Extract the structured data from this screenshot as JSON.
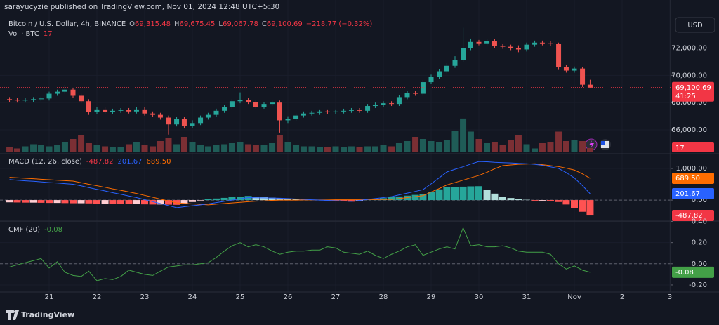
{
  "header": {
    "published": "sarayucyzie published on TradingView.com, Nov 01, 2024 12:48 UTC+5:30",
    "currency": "USD",
    "brand": "TradingView"
  },
  "chart_data": [
    {
      "type": "candlestick",
      "title": "Bitcoin / U.S. Dollar, 4h, BINANCE",
      "ohlc_legend": [
        {
          "key": "O",
          "text": "69,315.48"
        },
        {
          "key": "H",
          "text": "69,675.45"
        },
        {
          "key": "L",
          "text": "69,067.78"
        },
        {
          "key": "C",
          "text": "69,100.69"
        }
      ],
      "change": "−218.77 (−0.32%)",
      "last_label": "69,100.69",
      "countdown": "41:25",
      "up_color": "#26a69a",
      "down_color": "#ef5350",
      "xlim": [
        20,
        34
      ],
      "xticks": [
        21,
        22,
        23,
        24,
        25,
        26,
        27,
        28,
        29,
        30,
        31,
        {
          "value": 32,
          "label": "Nov"
        },
        {
          "value": 33,
          "label": "2"
        },
        {
          "value": 34,
          "label": "3"
        }
      ],
      "ylim": [
        64300,
        74500
      ],
      "yticks": [
        {
          "value": 72000,
          "label": "72,000.00"
        },
        {
          "value": 70000,
          "label": "70,000.00"
        },
        {
          "value": 68000,
          "label": "68,000.00"
        },
        {
          "value": 66000,
          "label": "66,000.00"
        }
      ],
      "x": [
        20.17,
        20.33,
        20.5,
        20.67,
        20.83,
        21,
        21.17,
        21.33,
        21.5,
        21.67,
        21.83,
        22,
        22.17,
        22.33,
        22.5,
        22.67,
        22.83,
        23,
        23.17,
        23.33,
        23.5,
        23.67,
        23.83,
        24,
        24.17,
        24.33,
        24.5,
        24.67,
        24.83,
        25,
        25.17,
        25.33,
        25.5,
        25.67,
        25.83,
        26,
        26.17,
        26.33,
        26.5,
        26.67,
        26.83,
        27,
        27.17,
        27.33,
        27.5,
        27.67,
        27.83,
        28,
        28.17,
        28.33,
        28.5,
        28.67,
        28.83,
        29,
        29.17,
        29.33,
        29.5,
        29.67,
        29.83,
        30,
        30.17,
        30.33,
        30.5,
        30.67,
        30.83,
        31,
        31.17,
        31.33,
        31.5,
        31.67,
        31.83,
        32,
        32.17,
        32.33
      ],
      "open": [
        68250,
        68200,
        68150,
        68200,
        68250,
        68300,
        68650,
        68800,
        68950,
        68500,
        68100,
        67300,
        67500,
        67300,
        67400,
        67450,
        67350,
        67500,
        67200,
        67100,
        66900,
        66400,
        66800,
        66300,
        66500,
        66900,
        67100,
        67400,
        67700,
        68100,
        68200,
        68050,
        67700,
        67900,
        68000,
        66700,
        66800,
        67050,
        67200,
        67250,
        67350,
        67300,
        67350,
        67400,
        67450,
        67400,
        67750,
        67850,
        67950,
        67900,
        68400,
        68700,
        68650,
        69500,
        69900,
        70300,
        70700,
        71100,
        72000,
        72450,
        72350,
        72500,
        72150,
        72100,
        72000,
        71900,
        72250,
        72400,
        72350,
        72300,
        70600,
        70350,
        70500,
        69315.48
      ],
      "high": [
        68400,
        68350,
        68350,
        68400,
        68450,
        68800,
        68950,
        69300,
        69100,
        68650,
        68250,
        67700,
        67650,
        67550,
        67600,
        67600,
        67650,
        67700,
        67350,
        67250,
        67050,
        66950,
        66950,
        66700,
        67050,
        67250,
        67550,
        67850,
        68250,
        68750,
        68350,
        68200,
        68050,
        68150,
        68150,
        67000,
        67200,
        67350,
        67400,
        67500,
        67500,
        67500,
        67550,
        67600,
        67600,
        67900,
        68000,
        68100,
        68100,
        68550,
        68850,
        68850,
        69650,
        70050,
        70450,
        70900,
        71400,
        73500,
        72700,
        72600,
        72650,
        72650,
        72300,
        72250,
        72200,
        72400,
        72550,
        72550,
        72500,
        72400,
        70750,
        70650,
        70600,
        69675.45
      ],
      "low": [
        68050,
        68000,
        68000,
        68050,
        68100,
        68150,
        68500,
        68650,
        68350,
        67950,
        67100,
        67150,
        67150,
        67150,
        67250,
        67200,
        67200,
        67050,
        66950,
        66750,
        65650,
        66250,
        66100,
        66150,
        66350,
        66750,
        66950,
        67250,
        67550,
        67950,
        67900,
        67550,
        67550,
        67750,
        65800,
        66500,
        66650,
        66900,
        67050,
        67100,
        67150,
        67150,
        67200,
        67250,
        67250,
        67250,
        67600,
        67700,
        67750,
        67750,
        68250,
        68500,
        68500,
        69350,
        69750,
        70150,
        70550,
        70950,
        71850,
        72200,
        72200,
        72000,
        71950,
        71850,
        71700,
        71750,
        72100,
        72200,
        72150,
        70400,
        70200,
        70200,
        69150,
        69067.78
      ],
      "close": [
        68200,
        68150,
        68200,
        68250,
        68300,
        68650,
        68800,
        68950,
        68500,
        68100,
        67300,
        67500,
        67300,
        67400,
        67450,
        67350,
        67500,
        67200,
        67100,
        66900,
        66400,
        66800,
        66300,
        66500,
        66900,
        67100,
        67400,
        67700,
        68100,
        68200,
        68050,
        67700,
        67900,
        68000,
        66700,
        66800,
        67050,
        67200,
        67250,
        67350,
        67300,
        67350,
        67400,
        67450,
        67400,
        67750,
        67850,
        67950,
        67900,
        68400,
        68700,
        68650,
        69500,
        69900,
        70300,
        70700,
        71100,
        72000,
        72450,
        72350,
        72500,
        72150,
        72100,
        72000,
        71900,
        72250,
        72400,
        72350,
        72300,
        70600,
        70350,
        70500,
        69315,
        69100.69
      ]
    },
    {
      "type": "bar",
      "title": "Vol · BTC",
      "up_color": "#1f5c57",
      "down_color": "#7b2f34",
      "ylim": [
        0,
        200
      ],
      "values": [
        20,
        15,
        25,
        35,
        30,
        25,
        30,
        45,
        60,
        80,
        40,
        30,
        25,
        20,
        20,
        35,
        45,
        30,
        25,
        50,
        65,
        35,
        70,
        45,
        30,
        25,
        30,
        35,
        40,
        45,
        35,
        30,
        30,
        40,
        80,
        45,
        30,
        25,
        25,
        20,
        20,
        25,
        20,
        25,
        20,
        25,
        25,
        30,
        25,
        40,
        50,
        70,
        60,
        50,
        45,
        55,
        100,
        157,
        95,
        60,
        40,
        45,
        30,
        55,
        80,
        35,
        15,
        40,
        45,
        95,
        50,
        55,
        50,
        17
      ]
    },
    {
      "type": "macd",
      "title": "MACD (12, 26, close)",
      "ylim": [
        -620,
        1400
      ],
      "yticks": [
        {
          "value": 1000,
          "label": "1,000.00"
        },
        {
          "value": 0,
          "label": "0.00"
        }
      ],
      "histogram": {
        "colors": [
          "#26a69a",
          "#b2dfdb",
          "#ffcdd2",
          "#ff5252"
        ],
        "values": [
          -70,
          -75,
          -80,
          -80,
          -85,
          -90,
          -90,
          -95,
          -100,
          -100,
          -105,
          -115,
          -115,
          -120,
          -125,
          -130,
          -130,
          -135,
          -140,
          -140,
          -145,
          -150,
          -105,
          -60,
          -15,
          30,
          50,
          70,
          90,
          110,
          130,
          110,
          95,
          75,
          60,
          50,
          35,
          20,
          5,
          -5,
          -15,
          -30,
          -40,
          -50,
          -20,
          5,
          35,
          60,
          90,
          115,
          140,
          165,
          190,
          260,
          340,
          410,
          420,
          425,
          435,
          440,
          330,
          205,
          95,
          65,
          30,
          10,
          -20,
          -20,
          -40,
          -60,
          -140,
          -250,
          -370,
          -487.82
        ]
      },
      "macd": {
        "color": "#2962ff",
        "values": [
          650,
          630,
          610,
          595,
          575,
          555,
          540,
          520,
          500,
          450,
          395,
          340,
          290,
          235,
          185,
          130,
          80,
          15,
          -50,
          -110,
          -175,
          -240,
          -210,
          -180,
          -150,
          -120,
          -80,
          -40,
          0,
          40,
          80,
          75,
          70,
          65,
          60,
          50,
          35,
          25,
          10,
          0,
          -10,
          -20,
          -30,
          -40,
          -10,
          20,
          50,
          80,
          110,
          165,
          220,
          275,
          330,
          515,
          705,
          890,
          975,
          1055,
          1140,
          1220,
          1210,
          1195,
          1185,
          1175,
          1160,
          1150,
          1130,
          1100,
          1050,
          1000,
          870,
          700,
          460,
          201.67
        ]
      },
      "signal": {
        "color": "#ff6d00",
        "last_value_label": "689.50",
        "values": [
          720,
          705,
          690,
          675,
          660,
          645,
          630,
          615,
          600,
          550,
          500,
          455,
          405,
          355,
          310,
          260,
          210,
          150,
          90,
          30,
          -30,
          -90,
          -105,
          -120,
          -135,
          -150,
          -130,
          -110,
          -90,
          -70,
          -50,
          -35,
          -25,
          -10,
          0,
          0,
          0,
          5,
          5,
          5,
          5,
          10,
          10,
          10,
          10,
          15,
          15,
          20,
          20,
          50,
          80,
          110,
          140,
          255,
          365,
          480,
          555,
          630,
          705,
          780,
          880,
          990,
          1090,
          1110,
          1130,
          1140,
          1150,
          1120,
          1090,
          1060,
          1010,
          950,
          830,
          689.5
        ]
      }
    },
    {
      "type": "line",
      "title": "CMF (20)",
      "color": "#43a047",
      "ylim": [
        -0.26,
        0.39
      ],
      "yticks": [
        {
          "value": 0.4,
          "label": "0.40"
        },
        {
          "value": 0.2,
          "label": "0.20"
        },
        {
          "value": 0,
          "label": "0.00"
        },
        {
          "value": -0.2,
          "label": "-0.20"
        }
      ],
      "values": [
        -0.03,
        -0.01,
        0.01,
        0.03,
        0.05,
        -0.04,
        0.02,
        -0.08,
        -0.11,
        -0.12,
        -0.07,
        -0.16,
        -0.14,
        -0.15,
        -0.12,
        -0.06,
        -0.08,
        -0.1,
        -0.11,
        -0.07,
        -0.03,
        -0.02,
        -0.01,
        -0.01,
        0,
        0.01,
        0.06,
        0.12,
        0.17,
        0.2,
        0.16,
        0.18,
        0.16,
        0.12,
        0.09,
        0.11,
        0.12,
        0.12,
        0.13,
        0.13,
        0.16,
        0.15,
        0.11,
        0.1,
        0.09,
        0.12,
        0.08,
        0.05,
        0.09,
        0.12,
        0.16,
        0.18,
        0.08,
        0.11,
        0.14,
        0.16,
        0.14,
        0.34,
        0.17,
        0.18,
        0.16,
        0.16,
        0.17,
        0.15,
        0.12,
        0.11,
        0.11,
        0.11,
        0.09,
        0,
        -0.05,
        -0.02,
        -0.06,
        -0.08
      ]
    }
  ]
}
